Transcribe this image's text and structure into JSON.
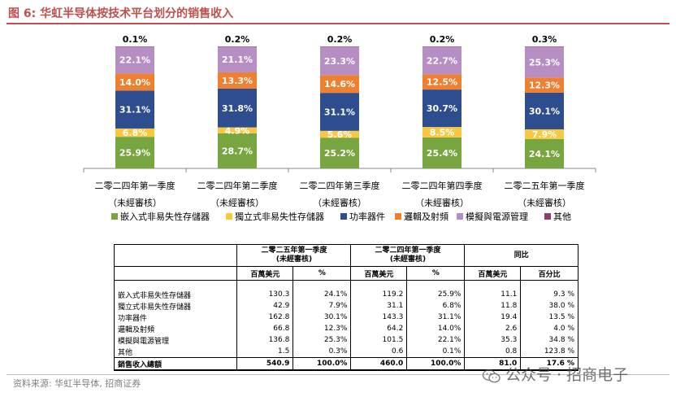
{
  "figure": {
    "title": "图 6:  华虹半导体按技术平台划分的销售收入",
    "source": "资料来源:  华虹半导体,  招商证券",
    "watermark": "公众号 · 招商电子"
  },
  "chart_data": {
    "type": "bar",
    "stacked": true,
    "percent_labels": true,
    "categories": [
      [
        "二零二四年第一季度",
        "（未經審核）"
      ],
      [
        "二零二四年第二季度",
        "（未經審核）"
      ],
      [
        "二零二四年第三季度",
        "（未經審核）"
      ],
      [
        "二零二四年第四季度",
        "（未經審核）"
      ],
      [
        "二零二五年第一季度",
        "（未經審核）"
      ]
    ],
    "series": [
      {
        "name": "嵌入式非易失性存儲器",
        "color": "#77a53f",
        "values": [
          25.9,
          28.7,
          25.2,
          25.4,
          24.1
        ]
      },
      {
        "name": "獨立式非易失性存儲器",
        "color": "#f9c840",
        "values": [
          6.8,
          4.9,
          5.6,
          8.5,
          7.9
        ]
      },
      {
        "name": "功率器件",
        "color": "#2e4d8f",
        "values": [
          31.1,
          31.8,
          31.1,
          30.7,
          30.1
        ]
      },
      {
        "name": "邏輯及射頻",
        "color": "#ee8030",
        "values": [
          14.0,
          13.3,
          14.6,
          12.5,
          12.3
        ]
      },
      {
        "name": "模擬與電源管理",
        "color": "#b78ec4",
        "values": [
          22.1,
          21.1,
          23.3,
          22.7,
          25.3
        ]
      },
      {
        "name": "其他",
        "color": "#8a3f6e",
        "values": [
          0.1,
          0.2,
          0.2,
          0.2,
          0.3
        ]
      }
    ],
    "value_labels": [
      [
        "25.9%",
        "28.7%",
        "25.2%",
        "25.4%",
        "24.1%"
      ],
      [
        "6.8%",
        "4.9%",
        "5.6%",
        "8.5%",
        "7.9%"
      ],
      [
        "31.1%",
        "31.8%",
        "31.1%",
        "30.7%",
        "30.1%"
      ],
      [
        "14.0%",
        "13.3%",
        "14.6%",
        "12.5%",
        "12.3%"
      ],
      [
        "22.1%",
        "21.1%",
        "23.3%",
        "22.7%",
        "25.3%"
      ],
      [
        "0.1%",
        "0.2%",
        "0.2%",
        "0.2%",
        "0.3%"
      ]
    ],
    "ylim": [
      0,
      100
    ]
  },
  "table": {
    "header_groups": [
      {
        "label": "二零二五年第一季度\n(未經審核)"
      },
      {
        "label": "二零二四年第一季度\n(未經審核)"
      },
      {
        "label": "同比"
      }
    ],
    "subheaders": [
      "百萬美元",
      "%",
      "百萬美元",
      "%",
      "百萬美元",
      "百分比"
    ],
    "rows": [
      {
        "label": "嵌入式非易失性存儲器",
        "cells": [
          "130.3",
          "24.1%",
          "119.2",
          "25.9%",
          "11.1",
          "9.3 %"
        ]
      },
      {
        "label": "獨立式非易失性存儲器",
        "cells": [
          "42.9",
          "7.9%",
          "31.1",
          "6.8%",
          "11.8",
          "38.0 %"
        ]
      },
      {
        "label": "功率器件",
        "cells": [
          "162.8",
          "30.1%",
          "143.3",
          "31.1%",
          "19.4",
          "13.5 %"
        ]
      },
      {
        "label": "邏輯及射頻",
        "cells": [
          "66.8",
          "12.3%",
          "64.2",
          "14.0%",
          "2.6",
          "4.0 %"
        ]
      },
      {
        "label": "模擬與電源管理",
        "cells": [
          "136.8",
          "25.3%",
          "101.5",
          "22.1%",
          "35.3",
          "34.8 %"
        ]
      },
      {
        "label": "其他",
        "cells": [
          "1.5",
          "0.3%",
          "0.6",
          "0.1%",
          "0.8",
          "123.8 %"
        ]
      }
    ],
    "total": {
      "label": "銷售收入總額",
      "cells": [
        "540.9",
        "100.0%",
        "460.0",
        "100.0%",
        "81.0",
        "17.6 %"
      ]
    }
  }
}
